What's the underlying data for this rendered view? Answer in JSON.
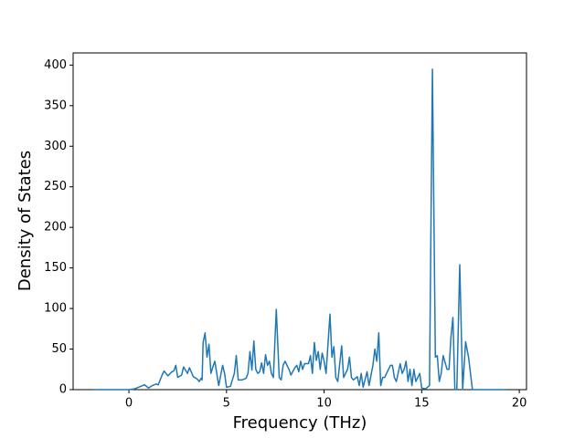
{
  "chart_data": {
    "type": "line",
    "xlabel": "Frequency (THz)",
    "ylabel": "Density of States",
    "x": [
      -1.8,
      -0.5,
      0,
      0.3,
      0.6,
      0.8,
      1.0,
      1.2,
      1.4,
      1.5,
      1.7,
      1.8,
      2.0,
      2.2,
      2.3,
      2.4,
      2.5,
      2.7,
      2.8,
      3.0,
      3.1,
      3.3,
      3.5,
      3.6,
      3.7,
      3.75,
      3.8,
      3.9,
      4.0,
      4.1,
      4.2,
      4.3,
      4.4,
      4.5,
      4.6,
      4.8,
      4.9,
      5.0,
      5.2,
      5.3,
      5.4,
      5.5,
      5.6,
      5.8,
      6.0,
      6.1,
      6.2,
      6.3,
      6.4,
      6.5,
      6.6,
      6.7,
      6.8,
      6.9,
      7.0,
      7.1,
      7.2,
      7.3,
      7.4,
      7.55,
      7.7,
      7.8,
      7.9,
      8.0,
      8.2,
      8.3,
      8.5,
      8.6,
      8.7,
      8.8,
      8.9,
      9.0,
      9.2,
      9.3,
      9.4,
      9.5,
      9.6,
      9.7,
      9.8,
      9.9,
      10.0,
      10.1,
      10.3,
      10.4,
      10.5,
      10.6,
      10.7,
      10.9,
      11.0,
      11.2,
      11.3,
      11.4,
      11.5,
      11.7,
      11.8,
      11.9,
      12.0,
      12.2,
      12.3,
      12.5,
      12.6,
      12.7,
      12.8,
      12.9,
      13.0,
      13.1,
      13.3,
      13.4,
      13.5,
      13.6,
      13.7,
      13.9,
      14.0,
      14.1,
      14.2,
      14.3,
      14.4,
      14.5,
      14.6,
      14.7,
      14.9,
      15.0,
      15.2,
      15.4,
      15.55,
      15.7,
      15.8,
      15.9,
      16.0,
      16.1,
      16.3,
      16.4,
      16.5,
      16.6,
      16.7,
      16.8,
      16.95,
      17.1,
      17.25,
      17.4,
      17.6,
      17.8,
      19.3
    ],
    "values": [
      0,
      0,
      0,
      1,
      4,
      6,
      2,
      5,
      7,
      6,
      18,
      23,
      17,
      22,
      23,
      30,
      15,
      18,
      28,
      20,
      27,
      16,
      13,
      10,
      14,
      12,
      58,
      70,
      40,
      56,
      20,
      28,
      35,
      20,
      5,
      30,
      20,
      3,
      4,
      12,
      20,
      42,
      12,
      12,
      14,
      20,
      47,
      24,
      60,
      25,
      20,
      22,
      33,
      20,
      43,
      30,
      35,
      20,
      15,
      99,
      15,
      12,
      30,
      35,
      25,
      18,
      27,
      30,
      22,
      35,
      25,
      32,
      32,
      42,
      20,
      58,
      36,
      47,
      25,
      45,
      35,
      20,
      93,
      40,
      53,
      15,
      10,
      54,
      15,
      25,
      40,
      15,
      12,
      16,
      5,
      20,
      3,
      22,
      5,
      30,
      50,
      35,
      70,
      5,
      15,
      15,
      25,
      30,
      30,
      15,
      10,
      32,
      20,
      25,
      35,
      10,
      25,
      5,
      25,
      10,
      20,
      2,
      1,
      5,
      395,
      40,
      42,
      10,
      20,
      42,
      25,
      25,
      65,
      89,
      0,
      0,
      154,
      0,
      59,
      40,
      0,
      0,
      0
    ],
    "color": "#1f77b4",
    "xlim": [
      -2.86,
      20.37
    ],
    "xticks": [
      0,
      5,
      10,
      15,
      20
    ],
    "ylim": [
      0,
      415
    ],
    "yticks": [
      0,
      50,
      100,
      150,
      200,
      250,
      300,
      350,
      400
    ]
  }
}
